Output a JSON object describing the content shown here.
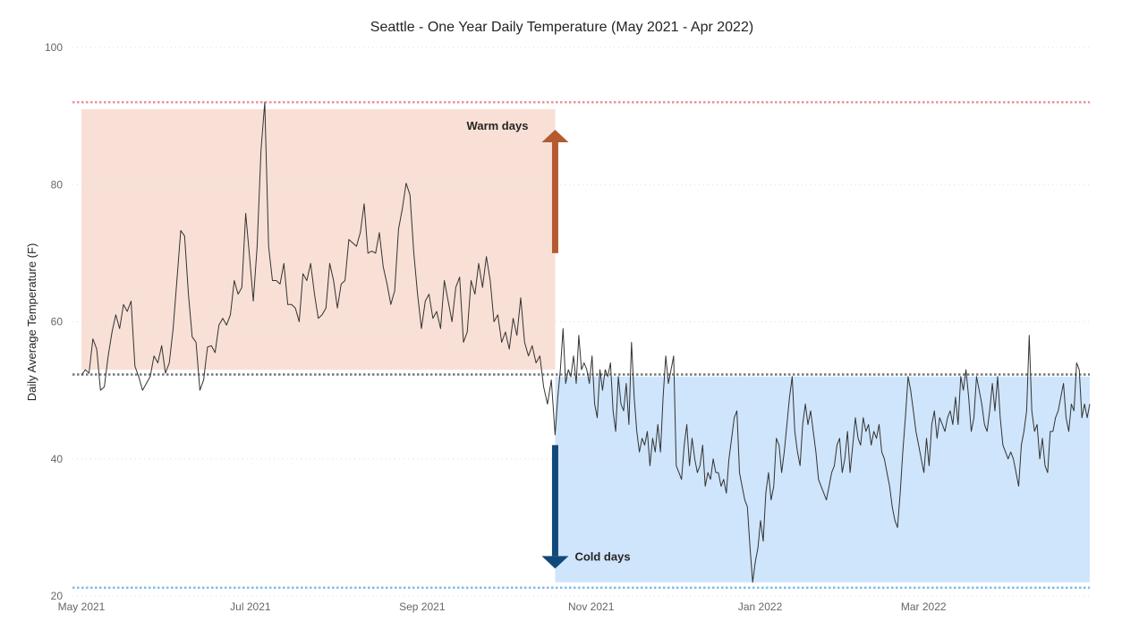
{
  "chart_data": {
    "type": "line",
    "title": "Seattle - One Year Daily Temperature (May 2021 - Apr 2022)",
    "ylabel": "Daily Average Temperature (F)",
    "xlabel": "",
    "ylim": [
      20,
      100
    ],
    "yticks": [
      20,
      40,
      60,
      80,
      100
    ],
    "xlim": [
      "2021-05-01",
      "2022-04-30"
    ],
    "xticks": [
      {
        "date": "2021-05-01",
        "label": "May 2021"
      },
      {
        "date": "2021-07-01",
        "label": "Jul 2021"
      },
      {
        "date": "2021-09-01",
        "label": "Sep 2021"
      },
      {
        "date": "2021-11-01",
        "label": "Nov 2021"
      },
      {
        "date": "2022-01-01",
        "label": "Jan 2022"
      },
      {
        "date": "2022-03-01",
        "label": "Mar 2022"
      }
    ],
    "grid": "horizontal dotted",
    "reference_lines": [
      {
        "name": "max",
        "y": 92,
        "color": "#e8939c",
        "style": "dotted"
      },
      {
        "name": "mean",
        "y": 52.3,
        "color": "#777777",
        "style": "dotted"
      },
      {
        "name": "min",
        "y": 21.2,
        "color": "#7fbde8",
        "style": "dotted"
      }
    ],
    "bands": [
      {
        "name": "warm-band",
        "x_start": "2021-05-01",
        "x_end": "2021-10-19",
        "y_start": 53,
        "y_end": 91,
        "color": "#f9e0d6"
      },
      {
        "name": "cold-band",
        "x_start": "2021-10-19",
        "x_end": "2022-04-30",
        "y_start": 22,
        "y_end": 52,
        "color": "#cfe5fc"
      }
    ],
    "annotations": [
      {
        "name": "warm-days",
        "text": "Warm days",
        "arrow": "up",
        "color": "#b55a30",
        "x_date": "2021-10-19",
        "arrow_from": 70,
        "arrow_to": 88
      },
      {
        "name": "cold-days",
        "text": "Cold days",
        "arrow": "down",
        "color": "#114a7a",
        "x_date": "2021-10-19",
        "arrow_from": 42,
        "arrow_to": 24
      }
    ],
    "series": [
      {
        "line_color": "#333333",
        "anchors": [
          [
            "2021-05-01",
            52.2
          ],
          [
            "2021-05-03",
            53.0
          ],
          [
            "2021-05-05",
            52.5
          ],
          [
            "2021-05-07",
            57.5
          ],
          [
            "2021-05-09",
            56.0
          ],
          [
            "2021-05-11",
            50.0
          ],
          [
            "2021-05-13",
            50.5
          ],
          [
            "2021-05-15",
            55.0
          ],
          [
            "2021-05-17",
            58.5
          ],
          [
            "2021-05-19",
            61.0
          ],
          [
            "2021-05-20",
            59.0
          ],
          [
            "2021-05-22",
            62.5
          ],
          [
            "2021-05-23",
            61.5
          ],
          [
            "2021-05-25",
            63.0
          ],
          [
            "2021-05-27",
            53.5
          ],
          [
            "2021-05-29",
            52.0
          ],
          [
            "2021-05-31",
            50.0
          ],
          [
            "2021-06-02",
            51.0
          ],
          [
            "2021-06-04",
            52.0
          ],
          [
            "2021-06-06",
            55.0
          ],
          [
            "2021-06-08",
            54.0
          ],
          [
            "2021-06-10",
            56.5
          ],
          [
            "2021-06-11",
            52.5
          ],
          [
            "2021-06-13",
            54.0
          ],
          [
            "2021-06-15",
            59.0
          ],
          [
            "2021-06-17",
            66.0
          ],
          [
            "2021-06-19",
            73.3
          ],
          [
            "2021-06-20",
            72.5
          ],
          [
            "2021-06-22",
            64.0
          ],
          [
            "2021-06-24",
            57.8
          ],
          [
            "2021-06-25",
            57.0
          ],
          [
            "2021-06-26",
            50.0
          ],
          [
            "2021-06-28",
            51.5
          ],
          [
            "2021-06-29",
            56.3
          ],
          [
            "2021-07-01",
            56.5
          ],
          [
            "2021-07-03",
            55.5
          ],
          [
            "2021-07-05",
            59.5
          ],
          [
            "2021-07-07",
            60.5
          ],
          [
            "2021-07-09",
            59.5
          ],
          [
            "2021-07-11",
            61.0
          ],
          [
            "2021-07-13",
            66.0
          ],
          [
            "2021-07-15",
            64.0
          ],
          [
            "2021-07-17",
            65.0
          ],
          [
            "2021-07-19",
            75.8
          ],
          [
            "2021-07-21",
            69.5
          ],
          [
            "2021-07-22",
            63.0
          ],
          [
            "2021-07-24",
            71.0
          ],
          [
            "2021-07-26",
            85.0
          ],
          [
            "2021-07-28",
            92.0
          ],
          [
            "2021-07-30",
            71.0
          ],
          [
            "2021-07-31",
            66.0
          ],
          [
            "2021-08-02",
            66.0
          ],
          [
            "2021-08-04",
            65.5
          ],
          [
            "2021-08-06",
            68.5
          ],
          [
            "2021-08-08",
            62.5
          ],
          [
            "2021-08-10",
            62.5
          ],
          [
            "2021-08-12",
            62.0
          ],
          [
            "2021-08-14",
            60.0
          ],
          [
            "2021-08-16",
            67.0
          ],
          [
            "2021-08-18",
            66.0
          ],
          [
            "2021-08-20",
            68.5
          ],
          [
            "2021-08-22",
            64.0
          ],
          [
            "2021-08-24",
            60.5
          ],
          [
            "2021-08-26",
            61.0
          ],
          [
            "2021-08-28",
            62.0
          ],
          [
            "2021-08-30",
            68.5
          ],
          [
            "2021-09-01",
            66.0
          ],
          [
            "2021-09-03",
            62.0
          ],
          [
            "2021-09-05",
            65.5
          ],
          [
            "2021-09-07",
            66.0
          ],
          [
            "2021-09-09",
            72.0
          ],
          [
            "2021-09-11",
            71.5
          ],
          [
            "2021-09-13",
            71.0
          ],
          [
            "2021-09-15",
            73.0
          ],
          [
            "2021-09-17",
            77.2
          ],
          [
            "2021-09-19",
            70.0
          ],
          [
            "2021-09-21",
            70.3
          ],
          [
            "2021-09-23",
            70.0
          ],
          [
            "2021-09-24",
            73.0
          ],
          [
            "2021-09-26",
            68.0
          ],
          [
            "2021-09-28",
            65.5
          ],
          [
            "2021-09-30",
            62.5
          ],
          [
            "2021-10-02",
            64.5
          ],
          [
            "2021-10-04",
            73.5
          ],
          [
            "2021-10-06",
            76.5
          ],
          [
            "2021-10-08",
            80.2
          ],
          [
            "2021-10-10",
            78.5
          ],
          [
            "2021-10-12",
            70.0
          ],
          [
            "2021-10-14",
            64.0
          ],
          [
            "2021-10-16",
            59.0
          ]
        ],
        "note": "(continues below in render script as separate series segments)"
      }
    ]
  }
}
